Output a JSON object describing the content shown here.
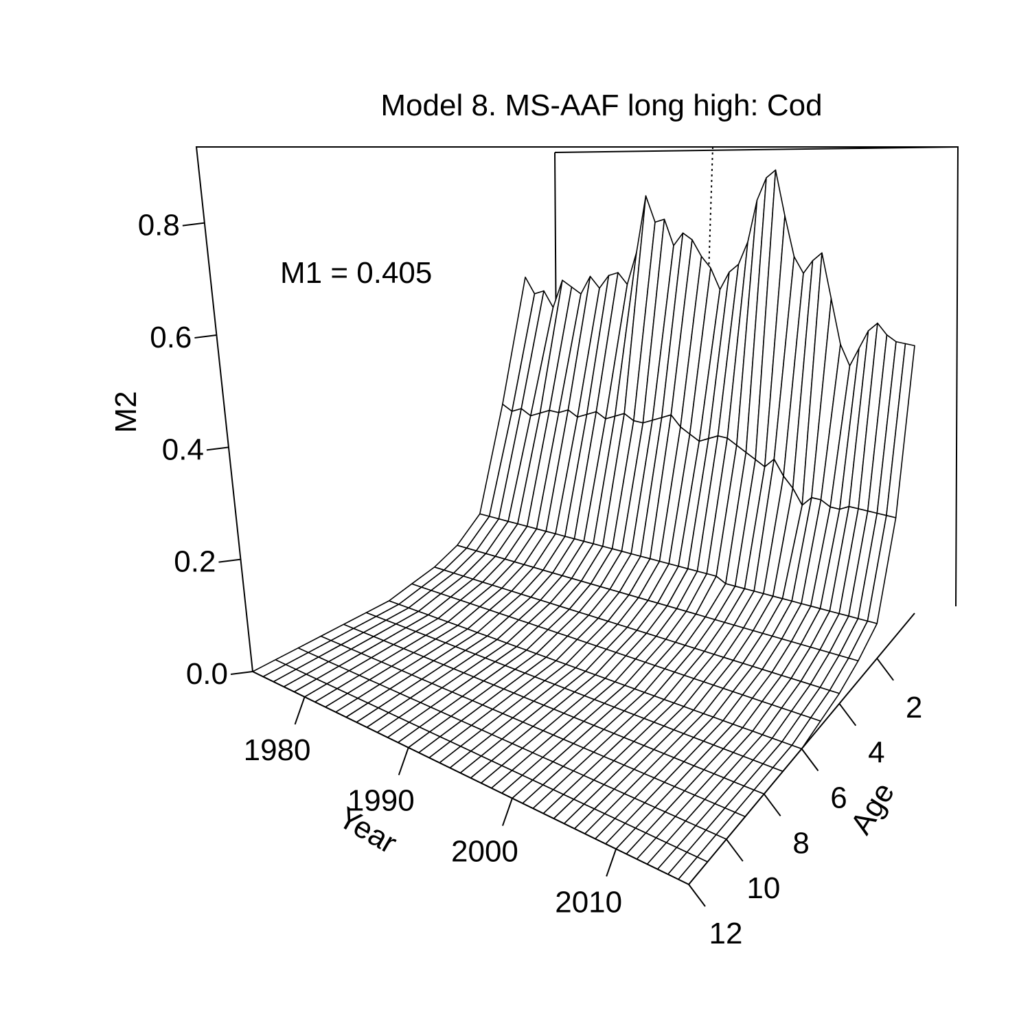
{
  "chart_data": {
    "type": "surface",
    "title": "Model 8. MS-AAF long high: Cod",
    "annotation": "M1 = 0.405",
    "xlabel": "Year",
    "ylabel": "Age",
    "zlabel": "M2",
    "x_ticks": [
      "1980",
      "1990",
      "2000",
      "2010"
    ],
    "y_ticks": [
      "2",
      "4",
      "6",
      "8",
      "10",
      "12"
    ],
    "z_ticks": [
      "0.0",
      "0.2",
      "0.4",
      "0.6",
      "0.8"
    ],
    "xlim": [
      1975,
      2017
    ],
    "ylim": [
      0,
      12
    ],
    "zlim": [
      0,
      0.87
    ],
    "years": [
      1975,
      1976,
      1977,
      1978,
      1979,
      1980,
      1981,
      1982,
      1983,
      1984,
      1985,
      1986,
      1987,
      1988,
      1989,
      1990,
      1991,
      1992,
      1993,
      1994,
      1995,
      1996,
      1997,
      1998,
      1999,
      2000,
      2001,
      2002,
      2003,
      2004,
      2005,
      2006,
      2007,
      2008,
      2009,
      2010,
      2011,
      2012,
      2013,
      2014,
      2015,
      2016,
      2017
    ],
    "ages": [
      0,
      1,
      2,
      3,
      4,
      5,
      6,
      7,
      8,
      9,
      10,
      11,
      12
    ],
    "m2_age0": [
      0.52,
      0.49,
      0.5,
      0.47,
      0.53,
      0.52,
      0.51,
      0.55,
      0.53,
      0.56,
      0.57,
      0.55,
      0.62,
      0.74,
      0.69,
      0.7,
      0.65,
      0.68,
      0.67,
      0.64,
      0.62,
      0.58,
      0.62,
      0.64,
      0.69,
      0.78,
      0.83,
      0.85,
      0.76,
      0.68,
      0.65,
      0.68,
      0.7,
      0.61,
      0.52,
      0.48,
      0.52,
      0.56,
      0.58,
      0.56,
      0.55,
      0.55,
      0.55
    ],
    "m2_age1": [
      0.28,
      0.27,
      0.28,
      0.27,
      0.28,
      0.29,
      0.29,
      0.3,
      0.29,
      0.3,
      0.31,
      0.3,
      0.31,
      0.32,
      0.31,
      0.31,
      0.32,
      0.33,
      0.34,
      0.32,
      0.31,
      0.3,
      0.31,
      0.32,
      0.32,
      0.31,
      0.3,
      0.29,
      0.28,
      0.3,
      0.27,
      0.25,
      0.22,
      0.24,
      0.24,
      0.23,
      0.23,
      0.24,
      0.24,
      0.24,
      0.24,
      0.24,
      0.24
    ],
    "m2_age2": [
      0.08,
      0.08,
      0.08,
      0.08,
      0.08,
      0.08,
      0.08,
      0.08,
      0.08,
      0.08,
      0.08,
      0.08,
      0.08,
      0.08,
      0.08,
      0.08,
      0.08,
      0.08,
      0.08,
      0.08,
      0.08,
      0.08,
      0.08,
      0.08,
      0.08,
      0.08,
      0.07,
      0.07,
      0.07,
      0.07,
      0.07,
      0.07,
      0.07,
      0.07,
      0.07,
      0.07,
      0.07,
      0.07,
      0.07,
      0.07,
      0.07,
      0.07,
      0.07
    ],
    "m2_age3": [
      0.04,
      0.04,
      0.04,
      0.04,
      0.04,
      0.04,
      0.04,
      0.04,
      0.04,
      0.04,
      0.04,
      0.04,
      0.04,
      0.04,
      0.04,
      0.04,
      0.04,
      0.04,
      0.04,
      0.04,
      0.04,
      0.04,
      0.04,
      0.04,
      0.04,
      0.04,
      0.04,
      0.04,
      0.04,
      0.04,
      0.04,
      0.04,
      0.04,
      0.04,
      0.04,
      0.04,
      0.04,
      0.04,
      0.04,
      0.04,
      0.04,
      0.04,
      0.04
    ],
    "m2_age4": [
      0.02,
      0.02,
      0.02,
      0.02,
      0.02,
      0.02,
      0.02,
      0.02,
      0.02,
      0.02,
      0.02,
      0.02,
      0.02,
      0.02,
      0.02,
      0.02,
      0.02,
      0.02,
      0.02,
      0.02,
      0.02,
      0.02,
      0.02,
      0.02,
      0.02,
      0.02,
      0.02,
      0.02,
      0.02,
      0.02,
      0.02,
      0.02,
      0.02,
      0.02,
      0.02,
      0.02,
      0.02,
      0.02,
      0.02,
      0.02,
      0.02,
      0.02,
      0.02
    ],
    "m2_age5": [
      0.01,
      0.01,
      0.01,
      0.01,
      0.01,
      0.01,
      0.01,
      0.01,
      0.01,
      0.01,
      0.01,
      0.01,
      0.01,
      0.01,
      0.01,
      0.01,
      0.01,
      0.01,
      0.01,
      0.01,
      0.01,
      0.01,
      0.01,
      0.01,
      0.01,
      0.01,
      0.01,
      0.01,
      0.01,
      0.01,
      0.01,
      0.01,
      0.01,
      0.01,
      0.01,
      0.01,
      0.01,
      0.01,
      0.01,
      0.01,
      0.01,
      0.01,
      0.01
    ],
    "m2_age6_to_12": 0,
    "grid": false
  }
}
